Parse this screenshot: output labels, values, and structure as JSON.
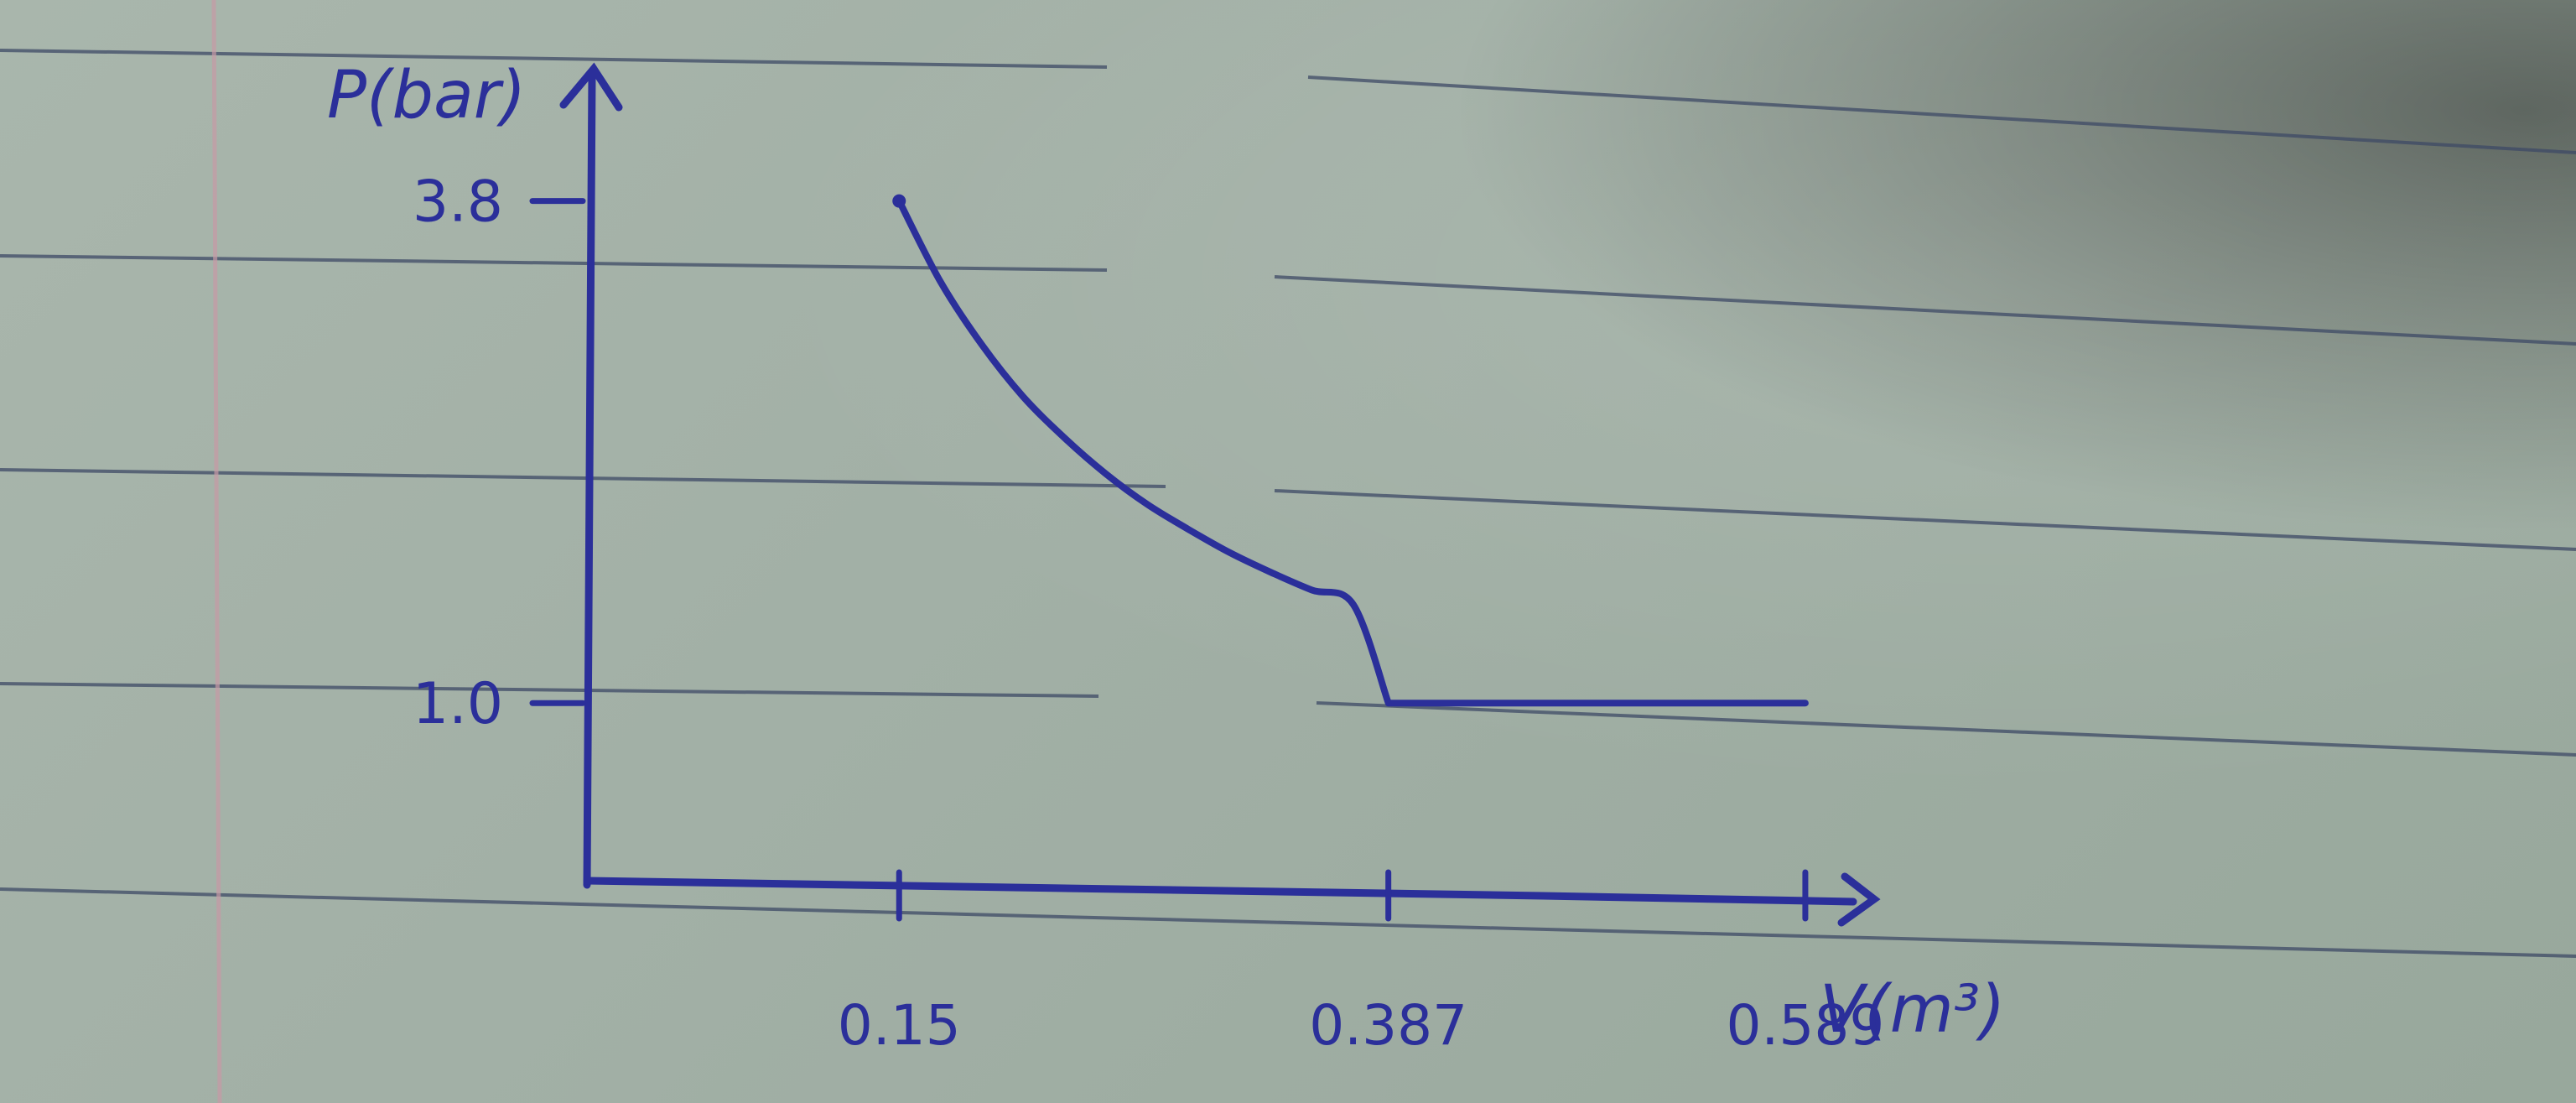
{
  "chart_data": {
    "type": "line",
    "title": "",
    "xlabel": "V(m³)",
    "ylabel": "P(bar)",
    "x_ticks": [
      "0.15",
      "0.387",
      "0.589"
    ],
    "y_ticks": [
      "3.8",
      "1.0"
    ],
    "series": [
      {
        "x": [
          0.15,
          0.17,
          0.19,
          0.21,
          0.23,
          0.25,
          0.27,
          0.29,
          0.31,
          0.33,
          0.35,
          0.37,
          0.387,
          0.42,
          0.46,
          0.5,
          0.54,
          0.589
        ],
        "y": [
          3.8,
          3.35,
          3.0,
          2.71,
          2.48,
          2.28,
          2.11,
          1.97,
          1.84,
          1.73,
          1.63,
          1.55,
          1.0,
          1.0,
          1.0,
          1.0,
          1.0,
          1.0
        ]
      }
    ],
    "xlim": [
      0.0,
      0.6
    ],
    "ylim": [
      0.0,
      4.5
    ],
    "grid": false,
    "legend": "none",
    "colors": {
      "ink": "#2b2f9a",
      "paper_line": "#3d4a66",
      "margin_line": "#c79aa6"
    }
  }
}
